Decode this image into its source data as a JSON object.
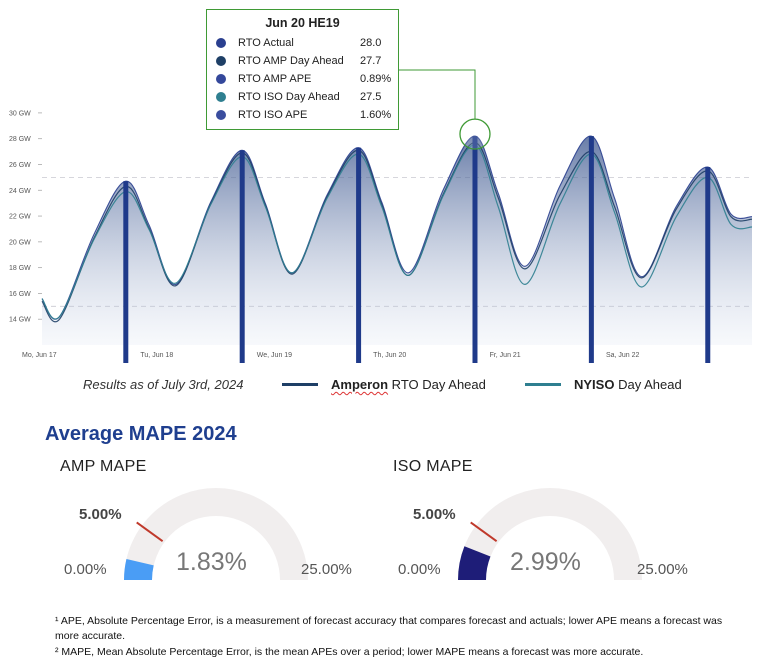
{
  "chart_data": [
    {
      "type": "area",
      "title": "",
      "x_tick_labels": [
        "Mo, Jun 17",
        "Tu, Jun 18",
        "We, Jun 19",
        "Th, Jun 20",
        "Fr, Jun 21",
        "Sa, Jun 22"
      ],
      "y_tick_labels": [
        "14 GW",
        "16 GW",
        "18 GW",
        "20 GW",
        "22 GW",
        "24 GW",
        "26 GW",
        "28 GW",
        "30 GW"
      ],
      "y_ticks": [
        14,
        16,
        18,
        20,
        22,
        24,
        26,
        28,
        30
      ],
      "ylim": [
        12,
        31
      ],
      "x_days": 6,
      "x_range_days": [
        0,
        6.1
      ],
      "grid": "dashed reference lines at 25 GW and 15 GW",
      "series": [
        {
          "name": "RTO Actual",
          "color": "#2a3f8f",
          "daily_peaks": [
            24.7,
            27.1,
            27.3,
            28.2,
            28.2,
            25.8
          ],
          "daily_mins": [
            14.2,
            16.7,
            17.6,
            17.6,
            18.1,
            17.3
          ]
        },
        {
          "name": "Amperon RTO Day Ahead",
          "color": "#1e3f66",
          "daily_peaks": [
            24.3,
            26.9,
            27.1,
            27.7,
            27.0,
            25.5
          ],
          "daily_mins": [
            14.0,
            16.6,
            17.5,
            17.4,
            17.9,
            17.2
          ]
        },
        {
          "name": "NYISO Day Ahead",
          "color": "#2f7f90",
          "daily_peaks": [
            23.9,
            26.6,
            26.8,
            27.5,
            26.8,
            25.0
          ],
          "daily_mins": [
            14.2,
            16.8,
            17.6,
            17.4,
            16.7,
            16.5
          ]
        }
      ],
      "peak_bars": {
        "color": "#1f3a8a",
        "days": [
          0.72,
          1.72,
          2.72,
          3.72,
          4.72,
          5.72
        ],
        "values": [
          24.7,
          27.1,
          27.3,
          28.2,
          28.2,
          25.8
        ]
      },
      "highlight": {
        "day": 3.72,
        "value": 28.2
      }
    },
    {
      "type": "gauge",
      "title": "AMP MAPE",
      "value": 1.83,
      "min": 0,
      "max": 25,
      "target": 5,
      "value_label": "1.83%",
      "min_label": "0.00%",
      "max_label": "25.00%",
      "target_label": "5.00%",
      "fill_color": "#4a9df5"
    },
    {
      "type": "gauge",
      "title": "ISO MAPE",
      "value": 2.99,
      "min": 0,
      "max": 25,
      "target": 5,
      "value_label": "2.99%",
      "min_label": "0.00%",
      "max_label": "25.00%",
      "target_label": "5.00%",
      "fill_color": "#1e1d78"
    }
  ],
  "tooltip": {
    "title": "Jun 20 HE19",
    "rows": [
      {
        "label": "RTO Actual",
        "value": "28.0",
        "color": "#2a3f8f"
      },
      {
        "label": "RTO AMP Day Ahead",
        "value": "27.7",
        "color": "#1e3f66"
      },
      {
        "label": "RTO AMP APE",
        "value": "0.89%",
        "color": "#34489b"
      },
      {
        "label": "RTO ISO Day Ahead",
        "value": "27.5",
        "color": "#2f7f90"
      },
      {
        "label": "RTO ISO APE",
        "value": "1.60%",
        "color": "#3a4d9e"
      }
    ]
  },
  "legend": {
    "results_text": "Results as of July 3rd, 2024",
    "items": [
      {
        "brand": "Amperon",
        "text": " RTO Day Ahead",
        "color": "#1e3f66"
      },
      {
        "brand": "NYISO",
        "text": " Day Ahead",
        "color": "#2f7f90"
      }
    ]
  },
  "section_title": "Average MAPE 2024",
  "footnotes": [
    "¹ APE, Absolute Percentage Error, is a measurement of forecast accuracy that compares forecast and actuals; lower APE means a forecast was more accurate.",
    "² MAPE, Mean Absolute Percentage Error, is the mean APEs over a period; lower MAPE means a forecast was more accurate."
  ],
  "colors": {
    "gauge_track": "#f1eeee",
    "target_marker": "#c0392b",
    "highlight_ring": "#3f9a35",
    "title_blue": "#1f3f8f"
  }
}
